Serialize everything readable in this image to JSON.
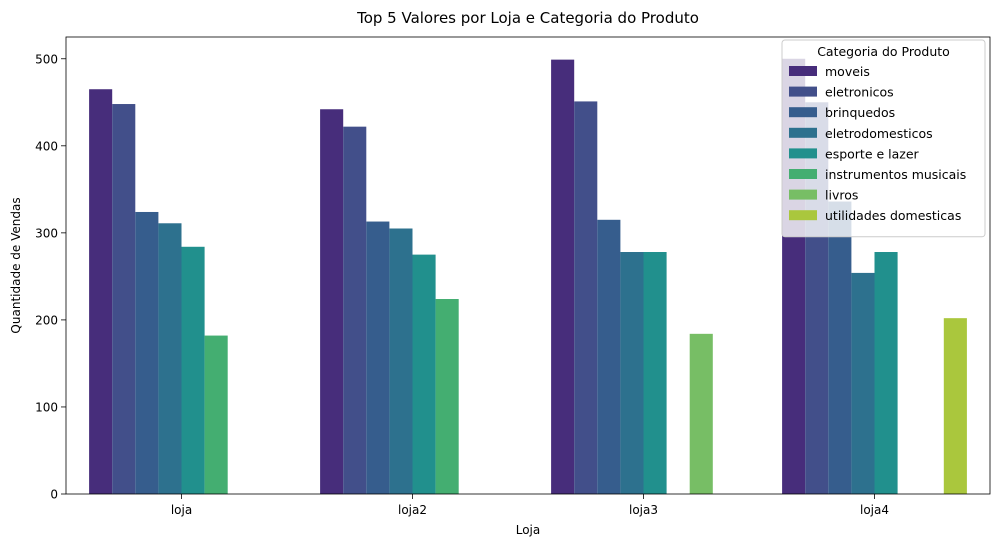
{
  "chart_data": {
    "type": "bar",
    "title": "Top 5 Valores por Loja e Categoria do Produto",
    "xlabel": "Loja",
    "ylabel": "Quantidade de Vendas",
    "categories": [
      "loja",
      "loja2",
      "loja3",
      "loja4"
    ],
    "ylim": [
      0,
      525
    ],
    "yticks": [
      0,
      100,
      200,
      300,
      400,
      500
    ],
    "grid": false,
    "legend": {
      "title": "Categoria do Produto",
      "placement": "top-right"
    },
    "series": [
      {
        "name": "moveis",
        "color": "#472d7b",
        "values": [
          465,
          442,
          499,
          500
        ]
      },
      {
        "name": "eletronicos",
        "color": "#424f8a",
        "values": [
          448,
          422,
          451,
          450
        ]
      },
      {
        "name": "brinquedos",
        "color": "#365d8d",
        "values": [
          324,
          313,
          315,
          336
        ]
      },
      {
        "name": "eletrodomesticos",
        "color": "#2d718e",
        "values": [
          311,
          305,
          278,
          254
        ]
      },
      {
        "name": "esporte e lazer",
        "color": "#21908d",
        "values": [
          284,
          275,
          278,
          278
        ]
      },
      {
        "name": "instrumentos musicais",
        "color": "#44ae71",
        "values": [
          182,
          224,
          null,
          null
        ]
      },
      {
        "name": "livros",
        "color": "#77be65",
        "values": [
          null,
          null,
          184,
          null
        ]
      },
      {
        "name": "utilidades domesticas",
        "color": "#aac73d",
        "values": [
          null,
          null,
          null,
          202
        ]
      }
    ]
  }
}
